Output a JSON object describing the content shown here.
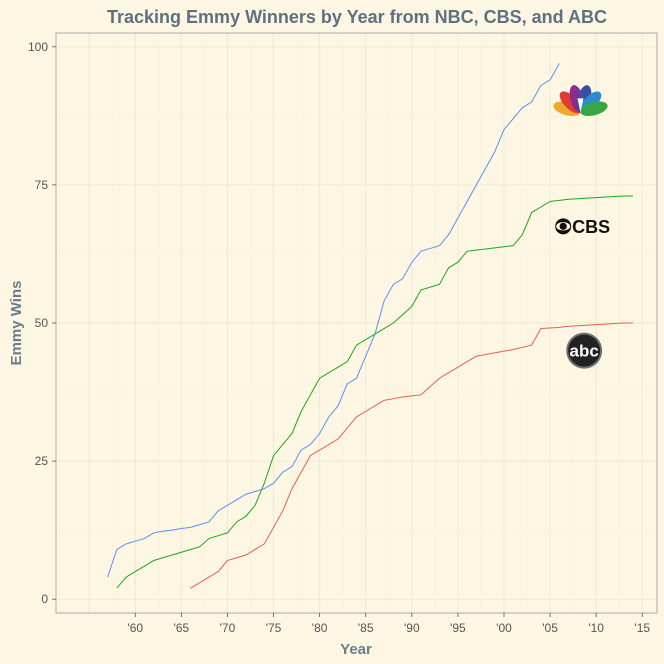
{
  "chart_data": {
    "type": "line",
    "title": "Tracking Emmy Winners by Year from NBC, CBS, and ABC",
    "xlabel": "Year",
    "ylabel": "Emmy Wins",
    "xlim": [
      1951.4,
      2016.6
    ],
    "ylim": [
      -2.5,
      102.5
    ],
    "x_ticks": [
      1960,
      1965,
      1970,
      1975,
      1980,
      1985,
      1990,
      1995,
      2000,
      2005,
      2010,
      2015
    ],
    "x_tick_labels": [
      "'60",
      "'65",
      "'70",
      "'75",
      "'80",
      "'85",
      "'90",
      "'95",
      "'00",
      "'05",
      "'10",
      "'15"
    ],
    "y_ticks": [
      0,
      25,
      50,
      75,
      100
    ],
    "y_tick_labels": [
      "0",
      "25",
      "50",
      "75",
      "100"
    ],
    "grid": true,
    "legend": "logos",
    "background": "#fdf6e3",
    "series": [
      {
        "logo": "nbc-peacock",
        "color": "#5b8ff9",
        "points": [
          [
            1957,
            4
          ],
          [
            1958,
            9
          ],
          [
            1959,
            10
          ],
          [
            1960,
            10.5
          ],
          [
            1961,
            11
          ],
          [
            1962,
            12
          ],
          [
            1963,
            12.3
          ],
          [
            1964,
            12.5
          ],
          [
            1965,
            12.8
          ],
          [
            1966,
            13
          ],
          [
            1967,
            13.5
          ],
          [
            1968,
            14
          ],
          [
            1969,
            16
          ],
          [
            1970,
            17
          ],
          [
            1971,
            18
          ],
          [
            1972,
            19
          ],
          [
            1973,
            19.5
          ],
          [
            1974,
            20
          ],
          [
            1975,
            21
          ],
          [
            1976,
            23
          ],
          [
            1977,
            24
          ],
          [
            1978,
            27
          ],
          [
            1979,
            28
          ],
          [
            1980,
            30
          ],
          [
            1981,
            33
          ],
          [
            1982,
            35
          ],
          [
            1983,
            39
          ],
          [
            1984,
            40
          ],
          [
            1985,
            44
          ],
          [
            1986,
            48
          ],
          [
            1987,
            54
          ],
          [
            1988,
            57
          ],
          [
            1989,
            58
          ],
          [
            1990,
            61
          ],
          [
            1991,
            63
          ],
          [
            1992,
            63.5
          ],
          [
            1993,
            64
          ],
          [
            1994,
            66
          ],
          [
            1995,
            69
          ],
          [
            1996,
            72
          ],
          [
            1997,
            75
          ],
          [
            1998,
            78
          ],
          [
            1999,
            81
          ],
          [
            2000,
            85
          ],
          [
            2001,
            87
          ],
          [
            2002,
            89
          ],
          [
            2003,
            90
          ],
          [
            2004,
            93
          ],
          [
            2005,
            94
          ],
          [
            2006,
            97
          ]
        ]
      },
      {
        "logo": "cbs-eye",
        "color": "#1aa81a",
        "points": [
          [
            1958,
            2
          ],
          [
            1959,
            4
          ],
          [
            1960,
            5
          ],
          [
            1961,
            6
          ],
          [
            1962,
            7
          ],
          [
            1963,
            7.5
          ],
          [
            1964,
            8
          ],
          [
            1965,
            8.5
          ],
          [
            1966,
            9
          ],
          [
            1967,
            9.5
          ],
          [
            1968,
            11
          ],
          [
            1969,
            11.5
          ],
          [
            1970,
            12
          ],
          [
            1971,
            14
          ],
          [
            1972,
            15
          ],
          [
            1973,
            17
          ],
          [
            1974,
            21
          ],
          [
            1975,
            26
          ],
          [
            1976,
            28
          ],
          [
            1977,
            30
          ],
          [
            1978,
            34
          ],
          [
            1979,
            37
          ],
          [
            1980,
            40
          ],
          [
            1981,
            41
          ],
          [
            1982,
            42
          ],
          [
            1983,
            43
          ],
          [
            1984,
            46
          ],
          [
            1985,
            47
          ],
          [
            1986,
            48
          ],
          [
            1987,
            49
          ],
          [
            1988,
            50
          ],
          [
            1989,
            51.5
          ],
          [
            1990,
            53
          ],
          [
            1991,
            56
          ],
          [
            1992,
            56.5
          ],
          [
            1993,
            57
          ],
          [
            1994,
            60
          ],
          [
            1995,
            61
          ],
          [
            1996,
            63
          ],
          [
            1997,
            63.2
          ],
          [
            1998,
            63.4
          ],
          [
            1999,
            63.6
          ],
          [
            2000,
            63.8
          ],
          [
            2001,
            64
          ],
          [
            2002,
            66
          ],
          [
            2003,
            70
          ],
          [
            2004,
            71
          ],
          [
            2005,
            72
          ],
          [
            2006,
            72.2
          ],
          [
            2007,
            72.4
          ],
          [
            2008,
            72.5
          ],
          [
            2009,
            72.6
          ],
          [
            2010,
            72.7
          ],
          [
            2011,
            72.8
          ],
          [
            2012,
            72.9
          ],
          [
            2013,
            73
          ],
          [
            2014,
            73
          ]
        ]
      },
      {
        "logo": "abc-circle",
        "color": "#e8604c",
        "points": [
          [
            1966,
            2
          ],
          [
            1967,
            3
          ],
          [
            1968,
            4
          ],
          [
            1969,
            5
          ],
          [
            1970,
            7
          ],
          [
            1971,
            7.5
          ],
          [
            1972,
            8
          ],
          [
            1973,
            9
          ],
          [
            1974,
            10
          ],
          [
            1975,
            13
          ],
          [
            1976,
            16
          ],
          [
            1977,
            20
          ],
          [
            1978,
            23
          ],
          [
            1979,
            26
          ],
          [
            1980,
            27
          ],
          [
            1981,
            28
          ],
          [
            1982,
            29
          ],
          [
            1983,
            31
          ],
          [
            1984,
            33
          ],
          [
            1985,
            34
          ],
          [
            1986,
            35
          ],
          [
            1987,
            36
          ],
          [
            1988,
            36.3
          ],
          [
            1989,
            36.6
          ],
          [
            1990,
            36.8
          ],
          [
            1991,
            37
          ],
          [
            1992,
            38.5
          ],
          [
            1993,
            40
          ],
          [
            1994,
            41
          ],
          [
            1995,
            42
          ],
          [
            1996,
            43
          ],
          [
            1997,
            44
          ],
          [
            1998,
            44.3
          ],
          [
            1999,
            44.6
          ],
          [
            2000,
            44.9
          ],
          [
            2001,
            45.2
          ],
          [
            2002,
            45.6
          ],
          [
            2003,
            46
          ],
          [
            2004,
            49
          ],
          [
            2005,
            49.1
          ],
          [
            2006,
            49.2
          ],
          [
            2007,
            49.4
          ],
          [
            2008,
            49.5
          ],
          [
            2009,
            49.6
          ],
          [
            2010,
            49.7
          ],
          [
            2011,
            49.8
          ],
          [
            2012,
            49.9
          ],
          [
            2013,
            50
          ],
          [
            2014,
            50
          ]
        ]
      }
    ],
    "logos": [
      {
        "name": "nbc-peacock",
        "x": 2008.3,
        "y": 88.5,
        "colors": [
          "#f0a830",
          "#e03c31",
          "#8a2b8f",
          "#3b4fa0",
          "#2a8bd0",
          "#3aa545"
        ]
      },
      {
        "name": "cbs-eye",
        "x": 2008.7,
        "y": 67.5,
        "text": "CBS",
        "color": "#111111"
      },
      {
        "name": "abc-circle",
        "x": 2008.7,
        "y": 45,
        "text": "abc",
        "color": "#222222"
      }
    ]
  }
}
